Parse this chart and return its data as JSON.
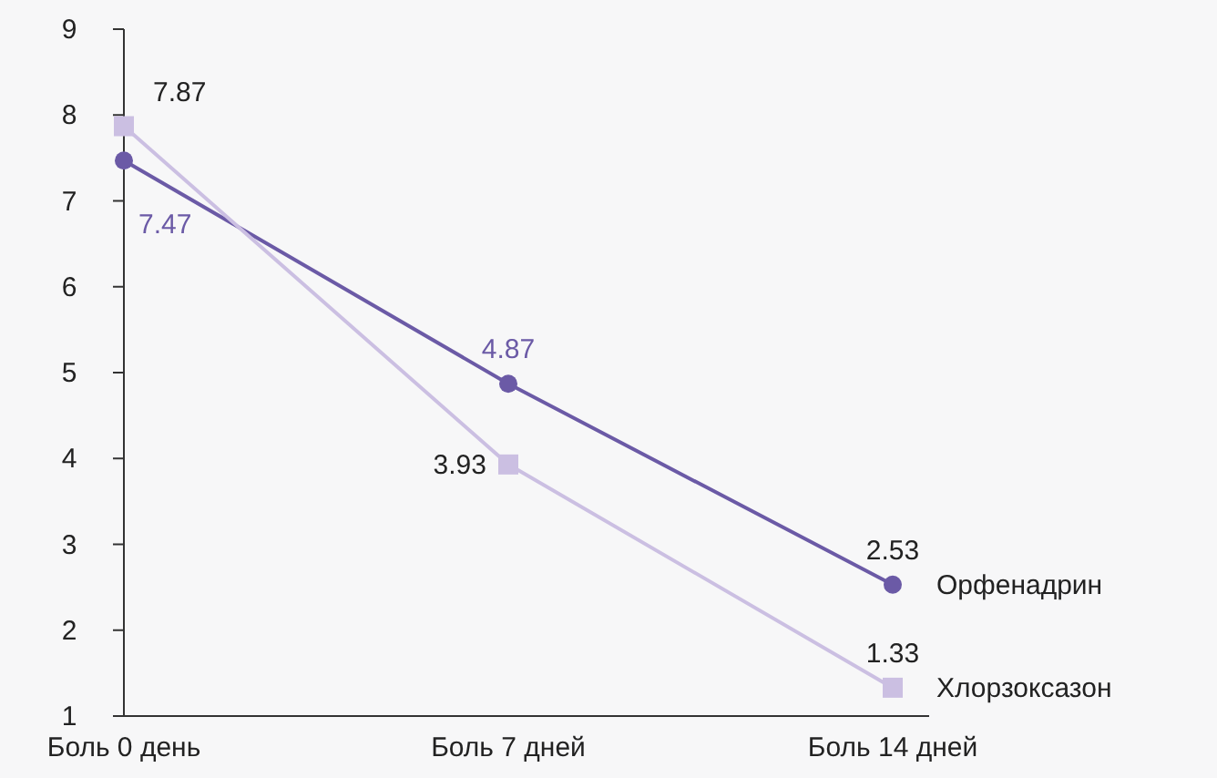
{
  "chart_data": {
    "type": "line",
    "categories": [
      "Боль 0 день",
      "Боль 7 дней",
      "Боль 14 дней"
    ],
    "series": [
      {
        "name": "Орфенадрин",
        "color": "#6b5aa6",
        "values": [
          7.47,
          4.87,
          2.53
        ],
        "marker": "circle"
      },
      {
        "name": "Хлорзоксазон",
        "color": "#cbbfe2",
        "values": [
          7.87,
          3.93,
          1.33
        ],
        "marker": "square"
      }
    ],
    "ylim": [
      1,
      9
    ],
    "yticks": [
      1,
      2,
      3,
      4,
      5,
      6,
      7,
      8,
      9
    ],
    "grid": false,
    "data_labels": true,
    "line_style": "solid"
  }
}
